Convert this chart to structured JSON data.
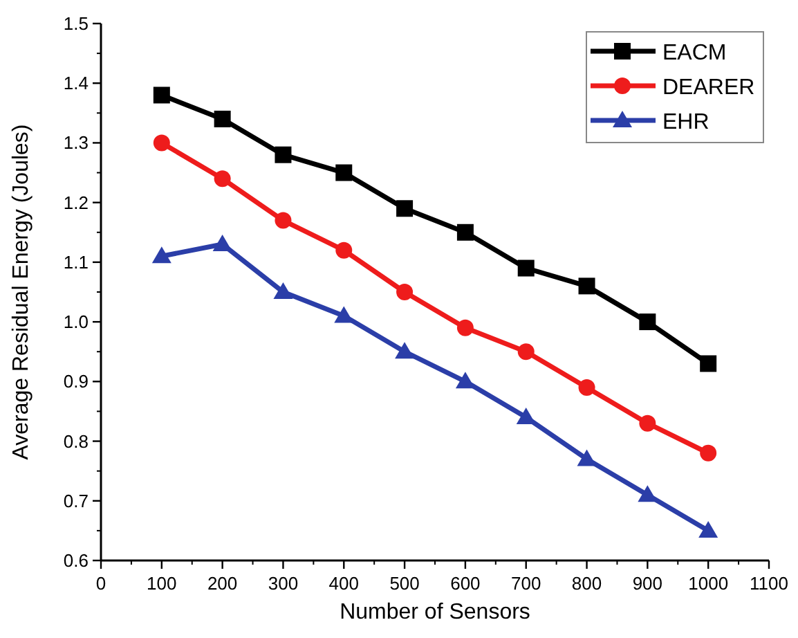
{
  "chart_data": {
    "type": "line",
    "xlabel": "Number of Sensors",
    "ylabel": "Average Residual Energy (Joules)",
    "x": [
      100,
      200,
      300,
      400,
      500,
      600,
      700,
      800,
      900,
      1000
    ],
    "series": [
      {
        "name": "EACM",
        "color": "#000000",
        "marker": "square",
        "values": [
          1.38,
          1.34,
          1.28,
          1.25,
          1.19,
          1.15,
          1.09,
          1.06,
          1.0,
          0.93
        ]
      },
      {
        "name": "DEARER",
        "color": "#ee1c1c",
        "marker": "circle",
        "values": [
          1.3,
          1.24,
          1.17,
          1.12,
          1.05,
          0.99,
          0.95,
          0.89,
          0.83,
          0.78
        ]
      },
      {
        "name": "EHR",
        "color": "#2b3ea8",
        "marker": "triangle",
        "values": [
          1.11,
          1.13,
          1.05,
          1.01,
          0.95,
          0.9,
          0.84,
          0.77,
          0.71,
          0.65
        ]
      }
    ],
    "xlim": [
      0,
      1100
    ],
    "xticks": [
      0,
      100,
      200,
      300,
      400,
      500,
      600,
      700,
      800,
      900,
      1000,
      1100
    ],
    "ylim": [
      0.6,
      1.5
    ],
    "yticks": [
      {
        "value": 0.6,
        "label": "0.6"
      },
      {
        "value": 0.7,
        "label": "0.7"
      },
      {
        "value": 0.8,
        "label": "0.8"
      },
      {
        "value": 0.9,
        "label": "0.9"
      },
      {
        "value": 1.0,
        "label": "1.0"
      },
      {
        "value": 1.1,
        "label": "1.1"
      },
      {
        "value": 1.2,
        "label": "1.2"
      },
      {
        "value": 1.3,
        "label": "1.3"
      },
      {
        "value": 1.4,
        "label": "1.4"
      },
      {
        "value": 1.5,
        "label": "1.5"
      }
    ],
    "grid": false,
    "legend": "top right",
    "line_style": "solid"
  }
}
